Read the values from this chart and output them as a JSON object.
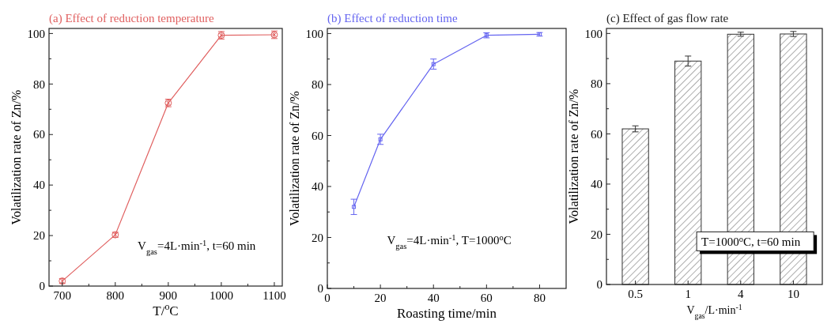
{
  "chart_data": [
    {
      "type": "line",
      "title": "(a) Effect of reduction temperature",
      "xlabel": "T/$^{o}$C",
      "ylabel": "Volatilization rate of Zn/%",
      "x": [
        700,
        800,
        900,
        1000,
        1100
      ],
      "series": [
        {
          "color": "#e06060",
          "values": [
            2,
            20.3,
            72.5,
            99.3,
            99.5
          ],
          "errors": [
            1,
            1,
            1.5,
            1.5,
            1.5
          ]
        }
      ],
      "marker": "circle",
      "line_style": "solid",
      "xlim": [
        675,
        1115
      ],
      "xticks": [
        700,
        {
          "value": 750,
          "label": null
        },
        800,
        {
          "value": 850,
          "label": null
        },
        900,
        {
          "value": 950,
          "label": null
        },
        1000,
        {
          "value": 1050,
          "label": null
        },
        1100
      ],
      "ylim": [
        0,
        102
      ],
      "yticks": [
        0,
        {
          "value": 10,
          "label": null
        },
        20,
        {
          "value": 30,
          "label": null
        },
        40,
        {
          "value": 50,
          "label": null
        },
        60,
        {
          "value": 70,
          "label": null
        },
        80,
        {
          "value": 90,
          "label": null
        },
        100
      ],
      "annotations": [
        "V$_{gas}$=4L·min$^{-1}$, t=60 min"
      ]
    },
    {
      "type": "line",
      "title": "(b) Effect of reduction time",
      "xlabel": "Roasting time/min",
      "ylabel": "Volatilization rate of Zn/%",
      "x": [
        10,
        20,
        40,
        60,
        80
      ],
      "series": [
        {
          "color": "#6464f0",
          "values": [
            32,
            58.5,
            88,
            99.3,
            99.7
          ],
          "errors": [
            3,
            2,
            2,
            1,
            0.7
          ]
        }
      ],
      "marker": "square",
      "line_style": "solid",
      "xlim": [
        0,
        90
      ],
      "xticks": [
        0,
        {
          "value": 10,
          "label": null
        },
        20,
        {
          "value": 30,
          "label": null
        },
        40,
        {
          "value": 50,
          "label": null
        },
        60,
        {
          "value": 70,
          "label": null
        },
        80
      ],
      "ylim": [
        0,
        102
      ],
      "yticks": [
        0,
        {
          "value": 10,
          "label": null
        },
        20,
        {
          "value": 30,
          "label": null
        },
        40,
        {
          "value": 50,
          "label": null
        },
        60,
        {
          "value": 70,
          "label": null
        },
        80,
        {
          "value": 90,
          "label": null
        },
        100
      ],
      "annotations": [
        "V$_{gas}$=4L·min$^{-1}$, T=1000$^{o}$C"
      ]
    },
    {
      "type": "bar",
      "title": "(c) Effect of gas flow rate",
      "xlabel": "V$_{gas}$/L·min$^{-1}$",
      "ylabel": "Volatilization rate of Zn/%",
      "categories": [
        "0.5",
        "1",
        "4",
        "10"
      ],
      "series": [
        {
          "color": "#333333",
          "values": [
            62,
            89,
            99.7,
            99.8
          ],
          "errors": [
            1.2,
            2,
            0.8,
            1
          ]
        }
      ],
      "ylim": [
        0,
        102
      ],
      "yticks": [
        0,
        {
          "value": 10,
          "label": null
        },
        20,
        {
          "value": 30,
          "label": null
        },
        40,
        {
          "value": 50,
          "label": null
        },
        60,
        {
          "value": 70,
          "label": null
        },
        80,
        {
          "value": 90,
          "label": null
        },
        100
      ],
      "annotations": [
        "T=1000$^{o}$C, t=60 min"
      ]
    }
  ]
}
